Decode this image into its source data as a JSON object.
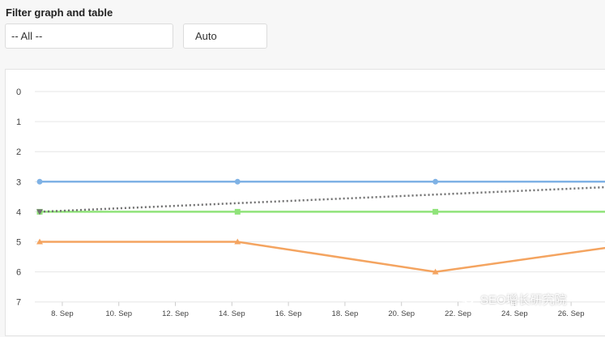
{
  "filter": {
    "title": "Filter graph and table",
    "category_select": "-- All --",
    "mode_select": "Auto"
  },
  "watermark": {
    "text": "SEO增长研究院"
  },
  "colors": {
    "blue": "#7fb2e5",
    "green": "#90e37a",
    "orange": "#f4a460",
    "trend": "#707070",
    "grid": "#e6e6e6"
  },
  "chart_data": {
    "type": "line",
    "y_axis": {
      "reversed": true,
      "ylim": [
        0,
        7
      ],
      "ticks": [
        "0",
        "1",
        "2",
        "3",
        "4",
        "5",
        "6",
        "7"
      ]
    },
    "x_axis": {
      "ticks": [
        "8. Sep",
        "10. Sep",
        "12. Sep",
        "14. Sep",
        "16. Sep",
        "18. Sep",
        "20. Sep",
        "22. Sep",
        "24. Sep",
        "26. Sep"
      ],
      "range_days": [
        7,
        27.8
      ]
    },
    "series": [
      {
        "color": "blue",
        "marker": "circle",
        "points": [
          [
            7.2,
            3
          ],
          [
            14.2,
            3
          ],
          [
            21.2,
            3
          ],
          [
            28,
            3
          ]
        ]
      },
      {
        "color": "green",
        "marker": "square",
        "points": [
          [
            7.2,
            4
          ],
          [
            14.2,
            4
          ],
          [
            21.2,
            4
          ],
          [
            28,
            4
          ]
        ]
      },
      {
        "color": "orange",
        "marker": "triangle",
        "points": [
          [
            7.2,
            5
          ],
          [
            14.2,
            5
          ],
          [
            21.2,
            6
          ],
          [
            28,
            5.1
          ]
        ]
      },
      {
        "color": "trend",
        "marker": "triangle-down",
        "dashed": true,
        "points": [
          [
            7.2,
            4
          ],
          [
            28,
            3.15
          ]
        ]
      }
    ]
  }
}
